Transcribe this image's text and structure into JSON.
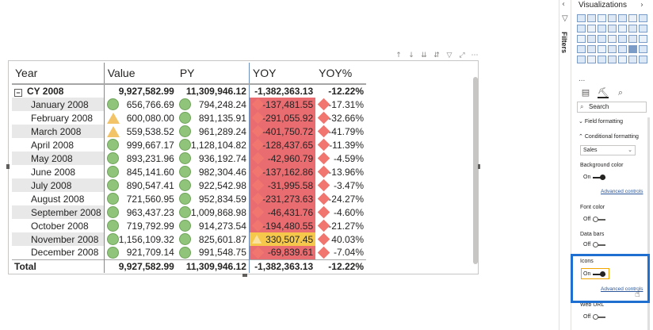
{
  "table": {
    "columns": [
      "Year",
      "Value",
      "PY",
      "YOY",
      "YOY%"
    ],
    "cy_row": {
      "label": "CY 2008",
      "value": "9,927,582.99",
      "py": "11,309,946.12",
      "yoy": "-1,382,363.13",
      "yoy_pct": "-12.22%"
    },
    "rows": [
      {
        "month": "January 2008",
        "value": "656,766.69",
        "value_icon": "circle",
        "py": "794,248.24",
        "yoy": "-137,481.55",
        "yoy_pct": "-17.31%",
        "yoy_color": "red"
      },
      {
        "month": "February 2008",
        "value": "600,080.00",
        "value_icon": "triangle",
        "py": "891,135.91",
        "yoy": "-291,055.92",
        "yoy_pct": "-32.66%",
        "yoy_color": "red"
      },
      {
        "month": "March 2008",
        "value": "559,538.52",
        "value_icon": "triangle",
        "py": "961,289.24",
        "yoy": "-401,750.72",
        "yoy_pct": "-41.79%",
        "yoy_color": "red"
      },
      {
        "month": "April 2008",
        "value": "999,667.17",
        "value_icon": "circle",
        "py": "1,128,104.82",
        "yoy": "-128,437.65",
        "yoy_pct": "-11.39%",
        "yoy_color": "red"
      },
      {
        "month": "May 2008",
        "value": "893,231.96",
        "value_icon": "circle",
        "py": "936,192.74",
        "yoy": "-42,960.79",
        "yoy_pct": "-4.59%",
        "yoy_color": "red"
      },
      {
        "month": "June 2008",
        "value": "845,141.60",
        "value_icon": "circle",
        "py": "982,304.46",
        "yoy": "-137,162.86",
        "yoy_pct": "-13.96%",
        "yoy_color": "red"
      },
      {
        "month": "July 2008",
        "value": "890,547.41",
        "value_icon": "circle",
        "py": "922,542.98",
        "yoy": "-31,995.58",
        "yoy_pct": "-3.47%",
        "yoy_color": "red"
      },
      {
        "month": "August 2008",
        "value": "721,560.95",
        "value_icon": "circle",
        "py": "952,834.59",
        "yoy": "-231,273.63",
        "yoy_pct": "-24.27%",
        "yoy_color": "red"
      },
      {
        "month": "September 2008",
        "value": "963,437.23",
        "value_icon": "circle",
        "py": "1,009,868.98",
        "yoy": "-46,431.76",
        "yoy_pct": "-4.60%",
        "yoy_color": "red"
      },
      {
        "month": "October 2008",
        "value": "719,792.99",
        "value_icon": "circle",
        "py": "914,273.54",
        "yoy": "-194,480.55",
        "yoy_pct": "-21.27%",
        "yoy_color": "red"
      },
      {
        "month": "November 2008",
        "value": "1,156,109.32",
        "value_icon": "circle",
        "py": "825,601.87",
        "yoy": "330,507.45",
        "yoy_pct": "40.03%",
        "yoy_color": "yellow"
      },
      {
        "month": "December 2008",
        "value": "921,709.14",
        "value_icon": "circle",
        "py": "991,548.75",
        "yoy": "-69,839.61",
        "yoy_pct": "-7.04%",
        "yoy_color": "red"
      }
    ],
    "total_row": {
      "label": "Total",
      "value": "9,927,582.99",
      "py": "11,309,946.12",
      "yoy": "-1,382,363.13",
      "yoy_pct": "-12.22%"
    }
  },
  "colors": {
    "green": "#8fc47a",
    "yellow": "#f5c74a",
    "red": "#e96c71",
    "highlight_border": "#1f6fd1",
    "on_outline": "#f0a500"
  },
  "toolbar_icons": [
    "arrow-up-icon",
    "arrow-down-icon",
    "drill-down-icon",
    "expand-icon",
    "filter-icon",
    "focus-mode-icon",
    "more-options-icon"
  ],
  "filters_pane": {
    "label": "Filters"
  },
  "viz_pane": {
    "title": "Visualizations",
    "more": "...",
    "search_placeholder": "Search",
    "field_formatting": "Field formatting",
    "conditional_formatting": "Conditional formatting",
    "field_dropdown": "Sales",
    "background_color": {
      "label": "Background color",
      "state": "On",
      "link": "Advanced controls"
    },
    "font_color": {
      "label": "Font color",
      "state": "Off"
    },
    "data_bars": {
      "label": "Data bars",
      "state": "Off"
    },
    "icons": {
      "label": "Icons",
      "state": "On",
      "link": "Advanced controls"
    },
    "web_url": {
      "label": "Web URL",
      "state": "Off"
    }
  }
}
